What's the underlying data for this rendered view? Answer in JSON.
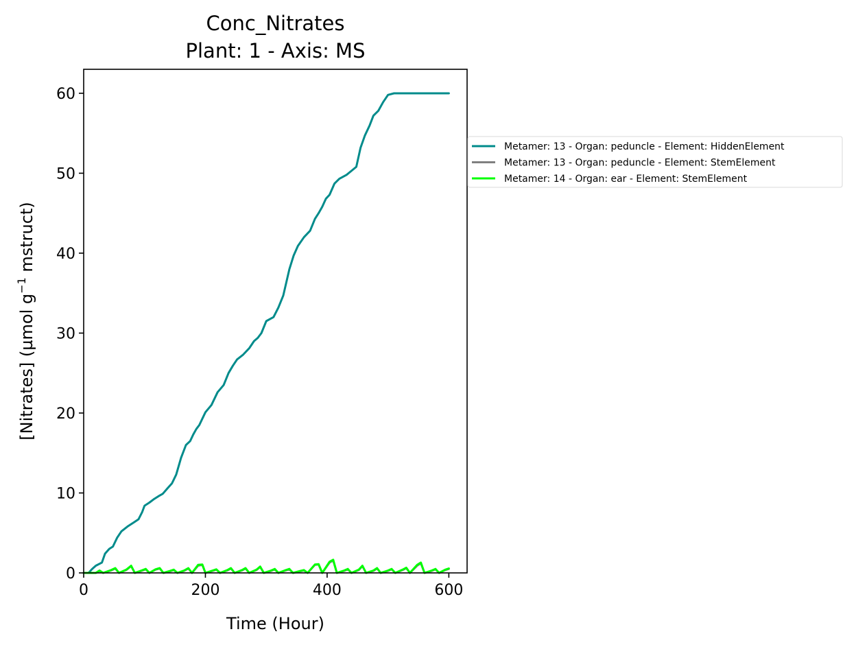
{
  "chart_data": {
    "type": "line",
    "title": "Conc_Nitrates",
    "subtitle": "Plant: 1 - Axis: MS",
    "xlabel": "Time (Hour)",
    "ylabel_main": "[Nitrates] (µmol g",
    "ylabel_sup": "−1",
    "ylabel_tail": " mstruct)",
    "xlim": [
      0,
      630
    ],
    "ylim": [
      0,
      63
    ],
    "xticks": [
      0,
      200,
      400,
      600
    ],
    "yticks": [
      0,
      10,
      20,
      30,
      40,
      50,
      60
    ],
    "grid": false,
    "legend_position": "outside-right",
    "series": [
      {
        "name": "Metamer: 13 - Organ: peduncle - Element: HiddenElement",
        "color": "#008b8b",
        "x": [
          0,
          8,
          14,
          20,
          30,
          35,
          42,
          48,
          55,
          62,
          72,
          82,
          90,
          96,
          100,
          108,
          115,
          123,
          130,
          138,
          145,
          152,
          160,
          168,
          175,
          180,
          185,
          190,
          200,
          210,
          220,
          230,
          238,
          245,
          252,
          262,
          272,
          280,
          286,
          292,
          300,
          312,
          320,
          328,
          338,
          345,
          352,
          362,
          372,
          380,
          386,
          392,
          398,
          404,
          412,
          420,
          432,
          440,
          448,
          455,
          462,
          470,
          476,
          484,
          492,
          500,
          510,
          518,
          526,
          533,
          540,
          548,
          555,
          562,
          570,
          578,
          584,
          590,
          596,
          600
        ],
        "values": [
          0,
          0,
          0.5,
          0.9,
          1.3,
          2.4,
          3.0,
          3.3,
          4.4,
          5.2,
          5.8,
          6.3,
          6.7,
          7.6,
          8.4,
          8.8,
          9.2,
          9.6,
          9.9,
          10.6,
          11.2,
          12.3,
          14.4,
          16.0,
          16.5,
          17.3,
          18.0,
          18.5,
          20.1,
          21.0,
          22.6,
          23.5,
          25.0,
          25.9,
          26.7,
          27.3,
          28.1,
          29.0,
          29.4,
          30.0,
          31.5,
          32.0,
          33.2,
          34.7,
          38.0,
          39.7,
          40.9,
          42.0,
          42.8,
          44.3,
          45.0,
          45.8,
          46.8,
          47.3,
          48.7,
          49.3,
          49.8,
          50.3,
          50.8,
          53.2,
          54.7,
          56.0,
          57.2,
          57.8,
          58.9,
          59.8,
          60.0,
          60.0,
          60.0,
          60.0,
          60.0,
          60.0,
          60.0,
          60.0,
          60.0,
          60.0,
          60.0,
          60.0,
          60.0,
          60.0
        ]
      },
      {
        "name": "Metamer: 13 - Organ: peduncle - Element: StemElement",
        "color": "#808080",
        "x": [
          0,
          20,
          26,
          32,
          45,
          52,
          58,
          70,
          78,
          84,
          95,
          102,
          108,
          118,
          125,
          131,
          142,
          148,
          154,
          165,
          172,
          178,
          188,
          195,
          200,
          212,
          218,
          224,
          236,
          242,
          248,
          260,
          266,
          272,
          284,
          290,
          296,
          308,
          314,
          320,
          332,
          338,
          344,
          356,
          362,
          368,
          380,
          386,
          392,
          404,
          410,
          416,
          428,
          434,
          440,
          452,
          458,
          464,
          476,
          482,
          488,
          500,
          506,
          512,
          524,
          530,
          536,
          548,
          554,
          560,
          572,
          578,
          584,
          594,
          600
        ],
        "values": [
          0,
          0,
          0.25,
          0,
          0.3,
          0.55,
          0,
          0.35,
          0.85,
          0,
          0.25,
          0.45,
          0,
          0.4,
          0.55,
          0,
          0.2,
          0.35,
          0,
          0.25,
          0.55,
          0,
          0.9,
          1.0,
          0,
          0.25,
          0.4,
          0,
          0.3,
          0.55,
          0,
          0.3,
          0.55,
          0,
          0.35,
          0.75,
          0,
          0.25,
          0.45,
          0,
          0.3,
          0.45,
          0,
          0.2,
          0.3,
          0,
          1.0,
          1.05,
          0,
          1.3,
          1.55,
          0,
          0.25,
          0.45,
          0,
          0.35,
          0.85,
          0,
          0.25,
          0.55,
          0,
          0.25,
          0.45,
          0,
          0.35,
          0.6,
          0,
          0.9,
          1.2,
          0,
          0.25,
          0.45,
          0,
          0.35,
          0.5
        ]
      },
      {
        "name": "Metamer: 14 - Organ: ear - Element: StemElement",
        "color": "#00ff00",
        "x": [
          0,
          20,
          26,
          32,
          45,
          52,
          58,
          70,
          78,
          84,
          95,
          102,
          108,
          118,
          125,
          131,
          142,
          148,
          154,
          165,
          172,
          178,
          188,
          195,
          200,
          212,
          218,
          224,
          236,
          242,
          248,
          260,
          266,
          272,
          284,
          290,
          296,
          308,
          314,
          320,
          332,
          338,
          344,
          356,
          362,
          368,
          380,
          386,
          392,
          404,
          410,
          416,
          428,
          434,
          440,
          452,
          458,
          464,
          476,
          482,
          488,
          500,
          506,
          512,
          524,
          530,
          536,
          548,
          554,
          560,
          572,
          578,
          584,
          594,
          600
        ],
        "values": [
          0,
          0,
          0.3,
          0,
          0.35,
          0.6,
          0,
          0.4,
          0.9,
          0,
          0.3,
          0.5,
          0,
          0.45,
          0.6,
          0,
          0.25,
          0.4,
          0,
          0.3,
          0.6,
          0,
          1.0,
          1.05,
          0,
          0.3,
          0.45,
          0,
          0.35,
          0.6,
          0,
          0.35,
          0.6,
          0,
          0.4,
          0.8,
          0,
          0.3,
          0.5,
          0,
          0.35,
          0.5,
          0,
          0.25,
          0.35,
          0,
          1.05,
          1.1,
          0,
          1.4,
          1.65,
          0,
          0.3,
          0.5,
          0,
          0.4,
          0.9,
          0,
          0.3,
          0.6,
          0,
          0.3,
          0.5,
          0,
          0.4,
          0.65,
          0,
          1.0,
          1.3,
          0,
          0.3,
          0.5,
          0,
          0.4,
          0.55
        ]
      }
    ]
  }
}
